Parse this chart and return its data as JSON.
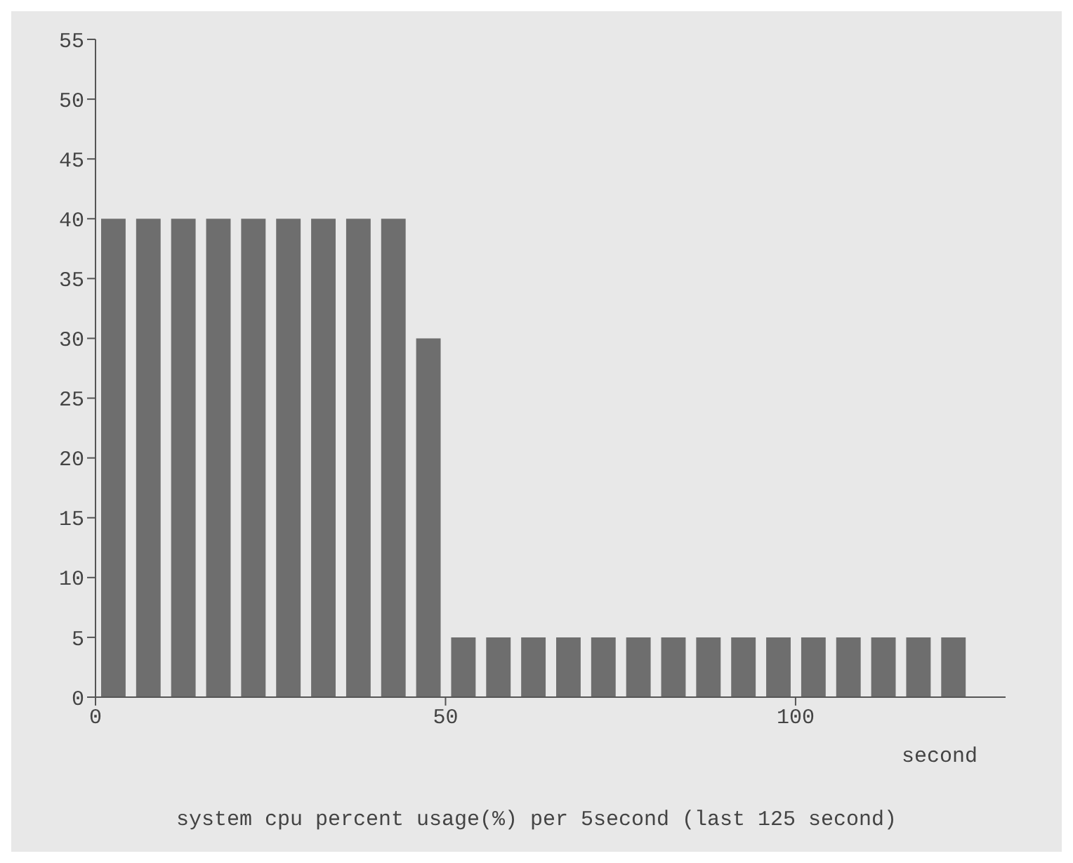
{
  "chart_data": {
    "type": "bar",
    "title": "system cpu percent usage(%) per 5second (last 125 second)",
    "xlabel": "second",
    "x": [
      2.5,
      7.5,
      12.5,
      17.5,
      22.5,
      27.5,
      32.5,
      37.5,
      42.5,
      47.5,
      52.5,
      57.5,
      62.5,
      67.5,
      72.5,
      77.5,
      82.5,
      87.5,
      92.5,
      97.5,
      102.5,
      107.5,
      112.5,
      117.5,
      122.5
    ],
    "values": [
      40,
      40,
      40,
      40,
      40,
      40,
      40,
      40,
      40,
      30,
      5,
      5,
      5,
      5,
      5,
      5,
      5,
      5,
      5,
      5,
      5,
      5,
      5,
      5,
      5
    ],
    "color": "#6e6e6e",
    "xlim": [
      0,
      130
    ],
    "xticks": [
      0,
      50,
      100
    ],
    "ylim": [
      0,
      55
    ],
    "yticks": [
      0,
      5,
      10,
      15,
      20,
      25,
      30,
      35,
      40,
      45,
      50,
      55
    ],
    "grid": false,
    "legend": false
  }
}
